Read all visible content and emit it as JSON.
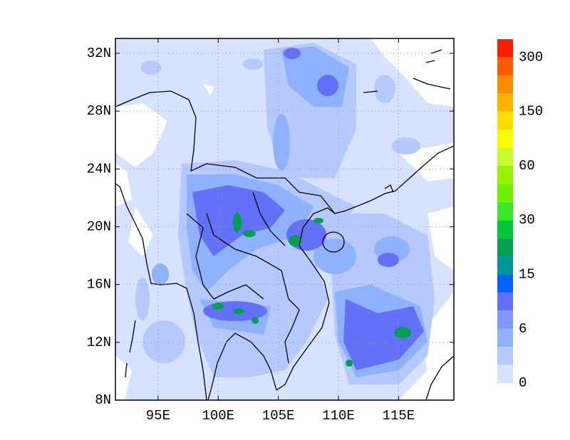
{
  "map": {
    "xlim": [
      91.45,
      119.6
    ],
    "ylim": [
      8,
      33.03
    ],
    "grid": true,
    "xticks": [
      {
        "value": 95,
        "label": "95E"
      },
      {
        "value": 100,
        "label": "100E"
      },
      {
        "value": 105,
        "label": "105E"
      },
      {
        "value": 110,
        "label": "110E"
      },
      {
        "value": 115,
        "label": "115E"
      }
    ],
    "yticks": [
      {
        "value": 8,
        "label": "8N"
      },
      {
        "value": 12,
        "label": "12N"
      },
      {
        "value": 16,
        "label": "16N"
      },
      {
        "value": 20,
        "label": "20N"
      },
      {
        "value": 24,
        "label": "24N"
      },
      {
        "value": 28,
        "label": "28N"
      },
      {
        "value": 32,
        "label": "32N"
      }
    ]
  },
  "colorbar": {
    "colors": [
      "#d6e2ff",
      "#b5c9ff",
      "#8eb2ff",
      "#7f96ff",
      "#6370f8",
      "#0063ff",
      "#00969b",
      "#00a050",
      "#00c838",
      "#3ce628",
      "#6ef000",
      "#96f500",
      "#c8fa32",
      "#fafa00",
      "#ffdc00",
      "#ffb400",
      "#ff8c00",
      "#ff5a00",
      "#ff1e00"
    ],
    "labels": [
      0,
      6,
      15,
      30,
      60,
      150,
      300
    ]
  }
}
